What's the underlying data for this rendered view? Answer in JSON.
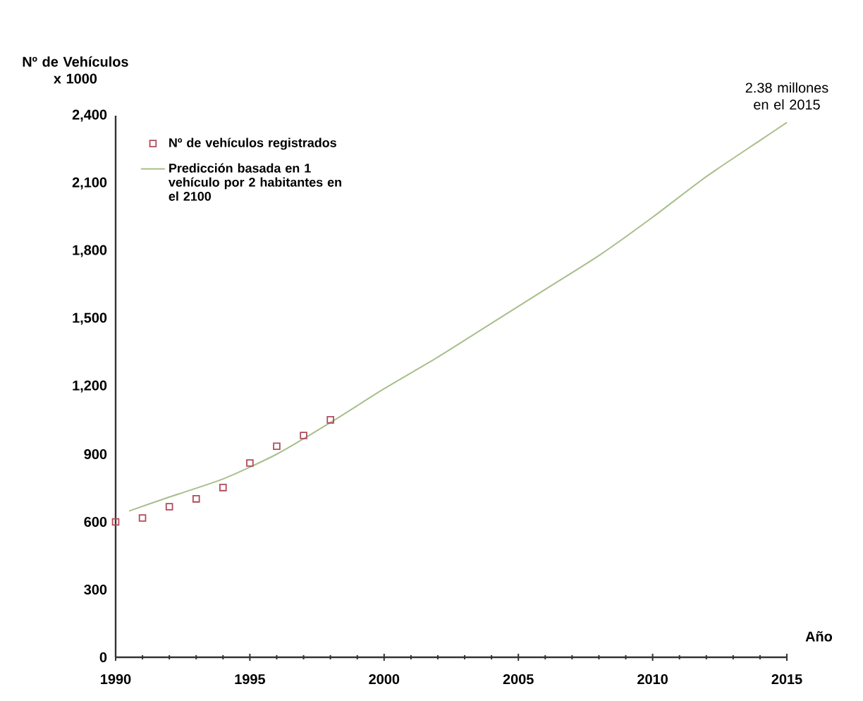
{
  "chart_data": {
    "type": "scatter",
    "ylabel": "Nº de Vehículos x 1000",
    "xlabel": "Año",
    "xlim": [
      1990,
      2015
    ],
    "xticks": [
      1990,
      1995,
      2000,
      2005,
      2010,
      2015
    ],
    "ylim": [
      0,
      2400
    ],
    "yticks": [
      0,
      300,
      600,
      900,
      {
        "value": 1200,
        "label": "1,200"
      },
      {
        "value": 1500,
        "label": "1,500"
      },
      {
        "value": 1800,
        "label": "1,800"
      },
      {
        "value": 2100,
        "label": "2,100"
      },
      {
        "value": 2400,
        "label": "2,400"
      }
    ],
    "grid": false,
    "legend": "top left",
    "series": [
      {
        "name": "Nº de vehículos registrados",
        "color": "#b04a5a",
        "marker": "square",
        "x": [
          1990,
          1991,
          1992,
          1993,
          1994,
          1995,
          1996,
          1997,
          1998
        ],
        "values": [
          600,
          617,
          667,
          702,
          752,
          861,
          935,
          983,
          1052
        ]
      },
      {
        "type": "line",
        "name": "Predicción basada en 1 vehículo por 2 habitantes en el 2100",
        "color": "#a8bf8c",
        "marker": "none",
        "x": [
          1990.5,
          1992,
          1994,
          1996,
          1998,
          2000,
          2002,
          2004,
          2006,
          2008,
          2010,
          2012,
          2014,
          2015
        ],
        "values": [
          648,
          710,
          790,
          900,
          1040,
          1190,
          1330,
          1480,
          1630,
          1780,
          1950,
          2130,
          2290,
          2370
        ]
      }
    ],
    "annotations": [
      {
        "text": "2.38 millones en el 2015",
        "x": 2015,
        "y": 2380
      }
    ]
  }
}
